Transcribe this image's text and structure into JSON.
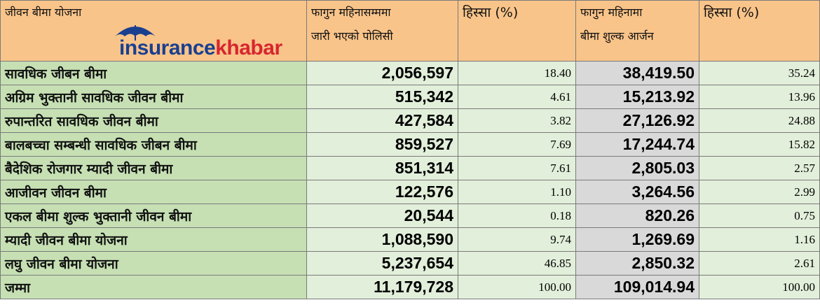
{
  "headers": {
    "scheme": "जीवन बीमा योजना",
    "policies_line1": "फागुन महिनासम्ममा",
    "policies_line2": "जारी भएको पोलिसी",
    "share1": "हिस्सा (%)",
    "premium_line1": "फागुन महिनामा",
    "premium_line2": "बीमा शुल्क आर्जन",
    "share2": "हिस्सा (%)"
  },
  "logo": {
    "part1": "insurance",
    "part2": "khabar",
    "icon": "umbrella-icon"
  },
  "colors": {
    "header_bg": "#f9c48a",
    "name_bg": "#c6e0b4",
    "value_bg": "#e2efda",
    "premium_bg": "#d9d9d9",
    "logo_blue": "#1a3f8f",
    "logo_red": "#d7262f"
  },
  "rows": [
    {
      "name": "सावधिक जीबन बीमा",
      "policies": "2,056,597",
      "share1": "18.40",
      "premium": "38,419.50",
      "share2": "35.24"
    },
    {
      "name": "अग्रिम भुक्तानी सावधिक जीवन बीमा",
      "policies": "515,342",
      "share1": "4.61",
      "premium": "15,213.92",
      "share2": "13.96"
    },
    {
      "name": "रुपान्तरित सावधिक जीवन बीमा",
      "policies": "427,584",
      "share1": "3.82",
      "premium": "27,126.92",
      "share2": "24.88"
    },
    {
      "name": "बालबच्चा सम्बन्धी सावधिक जीबन बीमा",
      "policies": "859,527",
      "share1": "7.69",
      "premium": "17,244.74",
      "share2": "15.82"
    },
    {
      "name": "बैदेशिक रोजगार म्यादी जीवन बीमा",
      "policies": "851,314",
      "share1": "7.61",
      "premium": "2,805.03",
      "share2": "2.57"
    },
    {
      "name": "आजीवन जीवन बीमा",
      "policies": "122,576",
      "share1": "1.10",
      "premium": "3,264.56",
      "share2": "2.99"
    },
    {
      "name": "एकल बीमा शुल्क भुक्तानी जीवन बीमा",
      "policies": "20,544",
      "share1": "0.18",
      "premium": "820.26",
      "share2": "0.75"
    },
    {
      "name": "म्यादी जीवन बीमा योजना",
      "policies": "1,088,590",
      "share1": "9.74",
      "premium": "1,269.69",
      "share2": "1.16"
    },
    {
      "name": "लघु जीवन बीमा योजना",
      "policies": "5,237,654",
      "share1": "46.85",
      "premium": "2,850.32",
      "share2": "2.61"
    }
  ],
  "total": {
    "name": "जम्मा",
    "policies": "11,179,728",
    "share1": "100.00",
    "premium": "109,014.94",
    "share2": "100.00"
  }
}
